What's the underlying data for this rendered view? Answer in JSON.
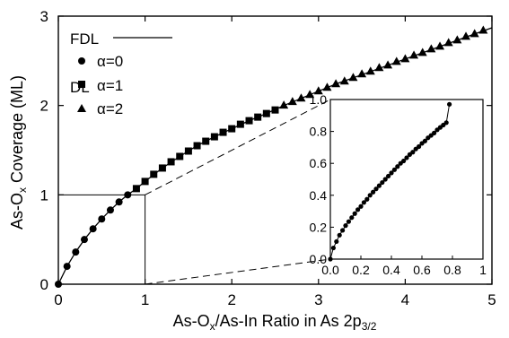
{
  "chart_data": {
    "type": "scatter",
    "xlabel_parts": [
      "As-O",
      "x",
      "/As-In Ratio in As 2p",
      "3/2"
    ],
    "ylabel_parts": [
      "As-O",
      "x",
      " Coverage (ML)"
    ],
    "xlim": [
      0,
      5
    ],
    "ylim": [
      0,
      3
    ],
    "x_ticks": [
      "0",
      "1",
      "2",
      "3",
      "4",
      "5"
    ],
    "y_ticks": [
      "0",
      "1",
      "2",
      "3"
    ],
    "legend": {
      "fdl": "FDL",
      "dl": "DL",
      "series_labels": [
        "α=0",
        "α=1",
        "α=2"
      ]
    },
    "series": [
      {
        "name": "α=0",
        "marker": "circle",
        "x": [
          0,
          0.1,
          0.2,
          0.3,
          0.4,
          0.5,
          0.6,
          0.7,
          0.8
        ],
        "y": [
          0,
          0.2,
          0.36,
          0.5,
          0.62,
          0.73,
          0.83,
          0.92,
          1.0
        ]
      },
      {
        "name": "α=1",
        "marker": "square",
        "x": [
          0.9,
          1.0,
          1.1,
          1.2,
          1.3,
          1.4,
          1.5,
          1.6,
          1.7,
          1.8,
          1.9,
          2.0,
          2.1,
          2.2,
          2.3,
          2.4,
          2.5
        ],
        "y": [
          1.07,
          1.15,
          1.23,
          1.3,
          1.37,
          1.43,
          1.49,
          1.55,
          1.6,
          1.65,
          1.7,
          1.74,
          1.79,
          1.83,
          1.87,
          1.91,
          1.95
        ]
      },
      {
        "name": "α=2",
        "marker": "triangle",
        "x": [
          2.6,
          2.7,
          2.8,
          2.9,
          3.0,
          3.1,
          3.2,
          3.3,
          3.4,
          3.5,
          3.6,
          3.7,
          3.8,
          3.9,
          4.0,
          4.1,
          4.2,
          4.3,
          4.4,
          4.5,
          4.6,
          4.7,
          4.8,
          4.9
        ],
        "y": [
          2.0,
          2.04,
          2.08,
          2.12,
          2.16,
          2.2,
          2.24,
          2.27,
          2.31,
          2.35,
          2.38,
          2.42,
          2.45,
          2.49,
          2.52,
          2.56,
          2.59,
          2.63,
          2.66,
          2.7,
          2.73,
          2.77,
          2.8,
          2.84
        ]
      }
    ],
    "fdl_line": {
      "x": [
        0,
        0.1,
        0.2,
        0.3,
        0.4,
        0.5,
        0.6,
        0.7,
        0.8,
        0.9,
        1.0,
        1.2,
        1.4,
        1.6,
        1.8,
        2.0,
        2.2,
        2.4,
        2.6,
        2.8,
        3.0,
        3.2,
        3.4,
        3.6,
        3.8,
        4.0,
        4.2,
        4.4,
        4.6,
        4.8,
        5.0
      ],
      "y": [
        0,
        0.2,
        0.36,
        0.5,
        0.62,
        0.73,
        0.83,
        0.92,
        1.0,
        1.07,
        1.15,
        1.3,
        1.43,
        1.55,
        1.65,
        1.74,
        1.83,
        1.91,
        2.0,
        2.08,
        2.16,
        2.24,
        2.31,
        2.38,
        2.45,
        2.52,
        2.59,
        2.66,
        2.73,
        2.8,
        2.87
      ]
    },
    "inset": {
      "xlim": [
        0,
        1
      ],
      "ylim": [
        0,
        1
      ],
      "x_ticks": [
        "0.0",
        "0.2",
        "0.4",
        "0.6",
        "0.8",
        "1"
      ],
      "y_ticks": [
        "0.0",
        "0.2",
        "0.4",
        "0.6",
        "0.8",
        "1.0"
      ],
      "x": [
        0,
        0.02,
        0.04,
        0.06,
        0.08,
        0.1,
        0.12,
        0.14,
        0.16,
        0.18,
        0.2,
        0.22,
        0.24,
        0.26,
        0.28,
        0.3,
        0.32,
        0.34,
        0.36,
        0.38,
        0.4,
        0.42,
        0.44,
        0.46,
        0.48,
        0.5,
        0.52,
        0.54,
        0.56,
        0.58,
        0.6,
        0.62,
        0.64,
        0.66,
        0.68,
        0.7,
        0.72,
        0.74,
        0.76,
        0.78
      ],
      "y": [
        0,
        0.07,
        0.11,
        0.15,
        0.18,
        0.21,
        0.235,
        0.26,
        0.285,
        0.31,
        0.33,
        0.355,
        0.375,
        0.4,
        0.42,
        0.44,
        0.46,
        0.48,
        0.5,
        0.52,
        0.54,
        0.56,
        0.58,
        0.6,
        0.615,
        0.635,
        0.655,
        0.67,
        0.69,
        0.705,
        0.725,
        0.74,
        0.76,
        0.775,
        0.79,
        0.81,
        0.825,
        0.84,
        0.855,
        0.97
      ]
    }
  }
}
